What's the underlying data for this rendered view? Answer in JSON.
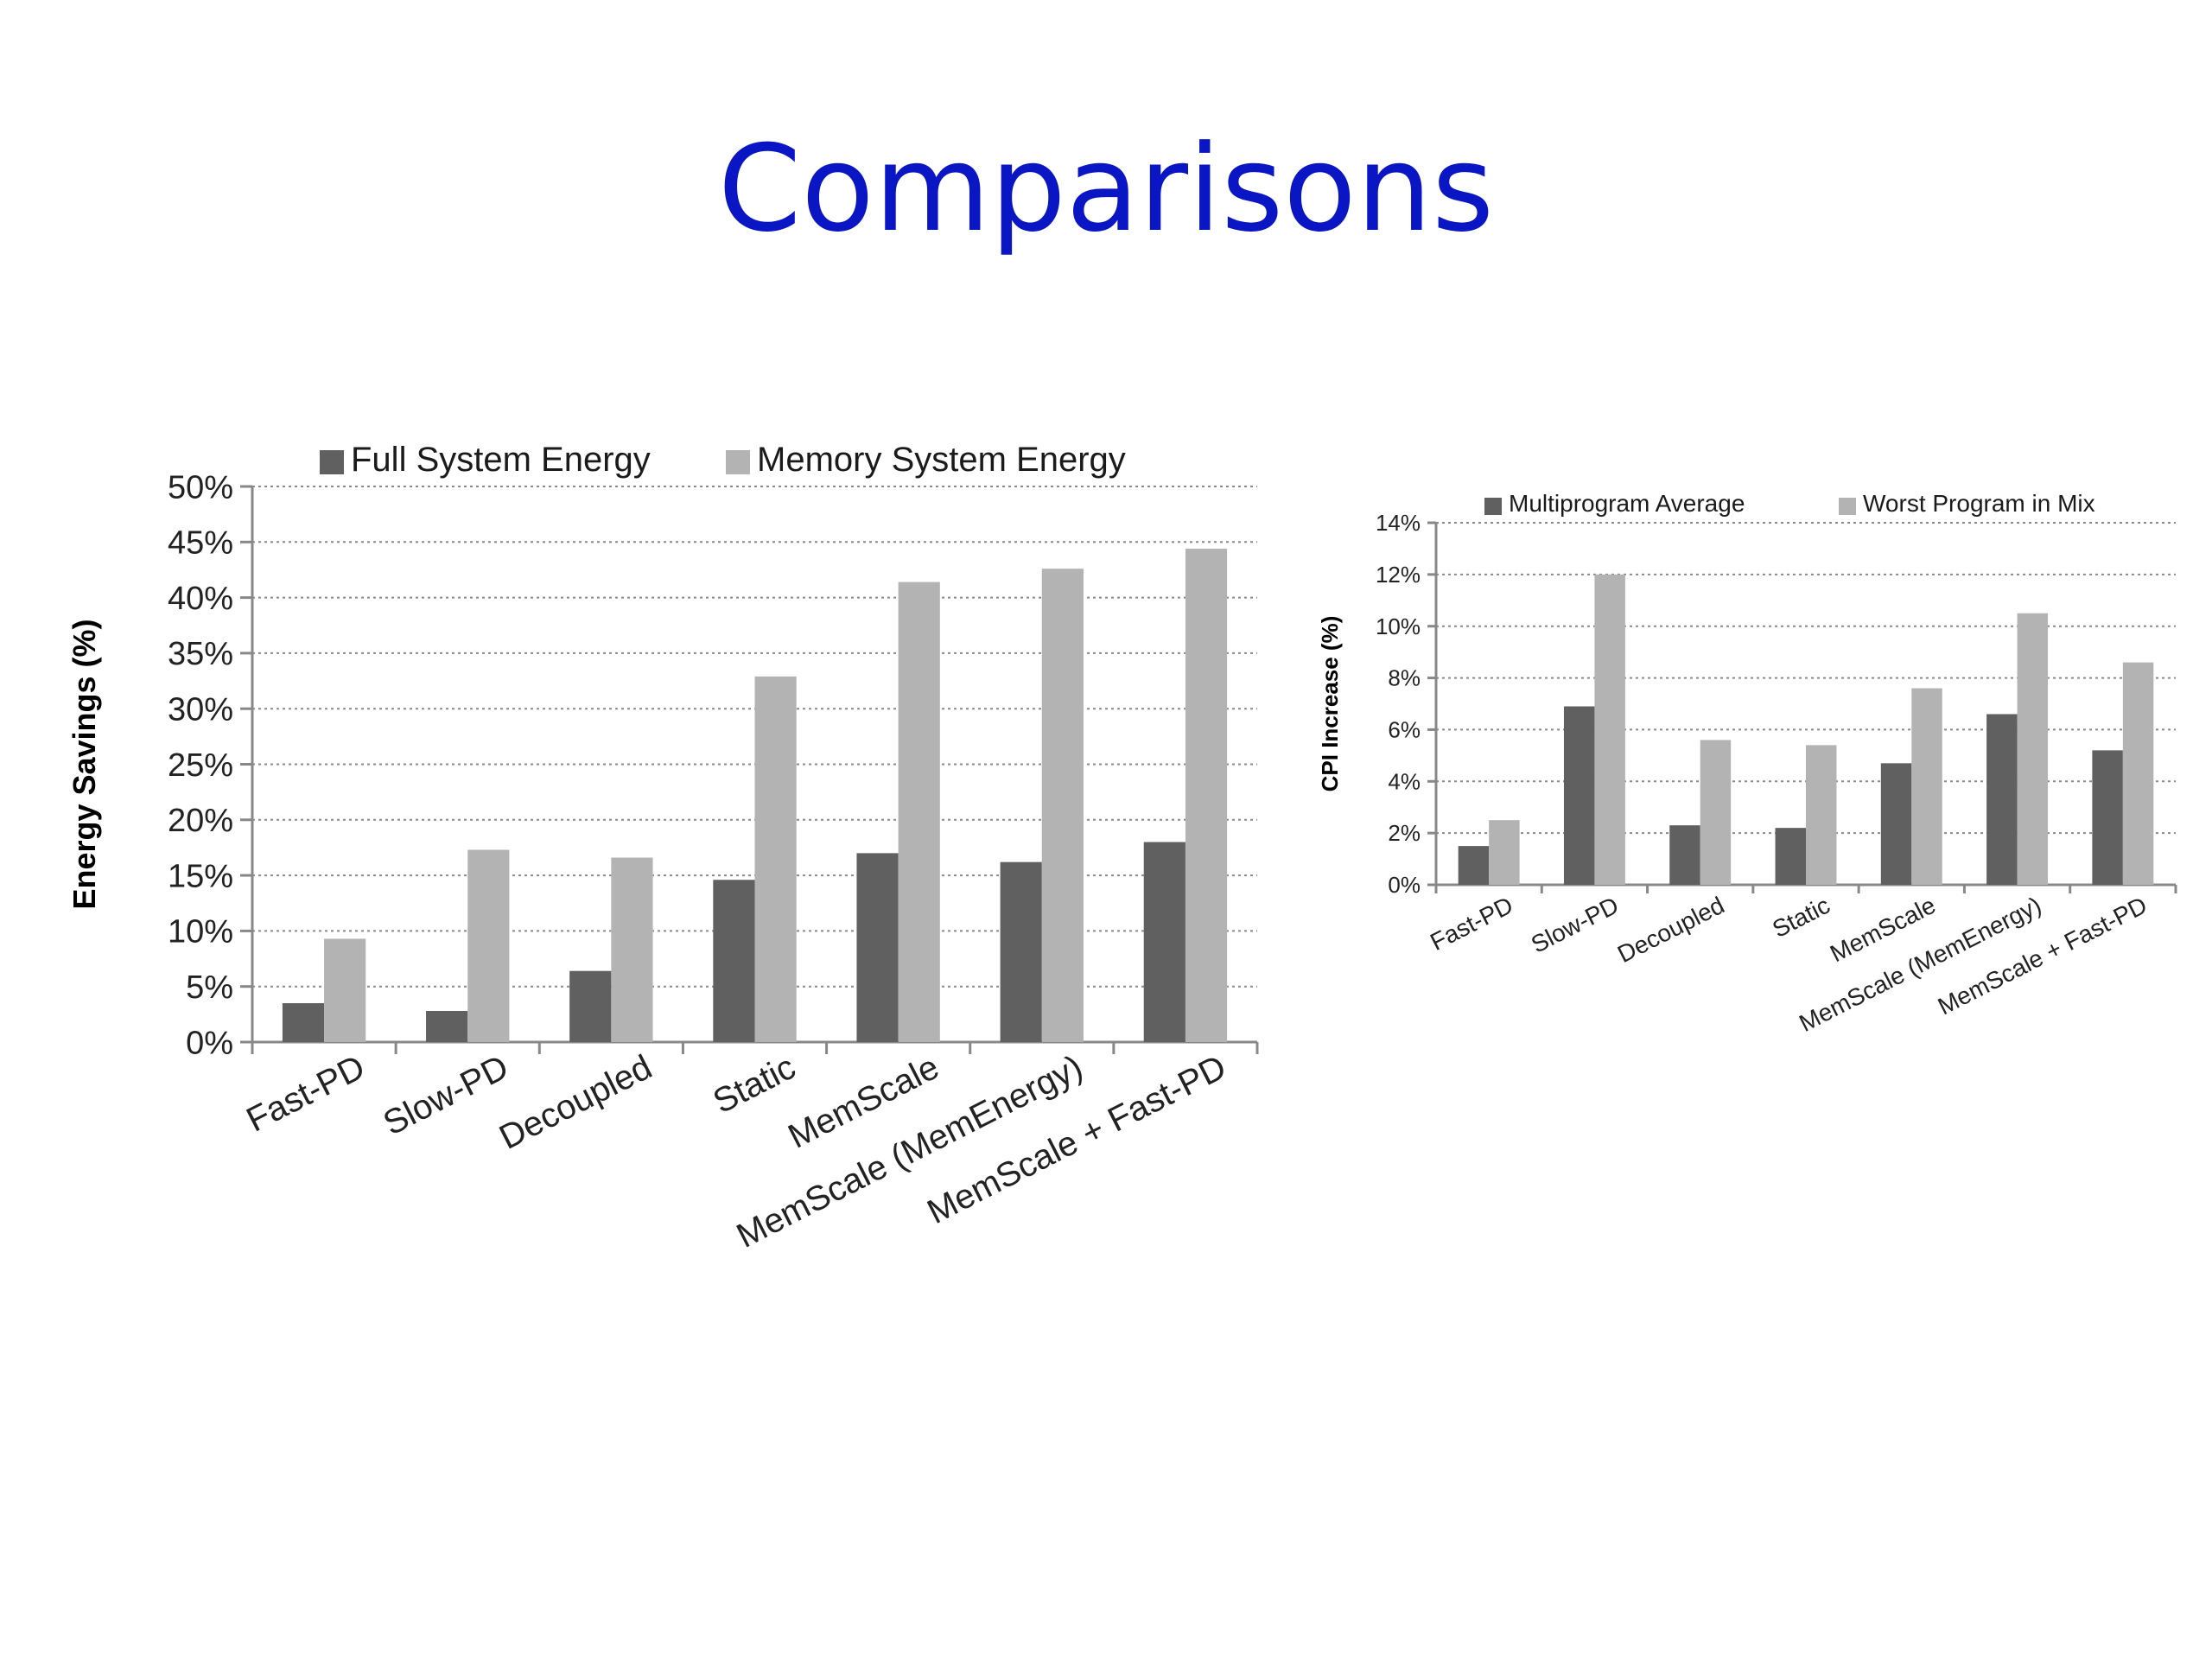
{
  "title": "Comparisons",
  "colors": {
    "title": "#0a16c4",
    "series_dark": "#606060",
    "series_light": "#b3b3b3"
  },
  "chart_data": [
    {
      "type": "bar",
      "categories": [
        "Fast-PD",
        "Slow-PD",
        "Decoupled",
        "Static",
        "MemScale",
        "MemScale (MemEnergy)",
        "MemScale + Fast-PD"
      ],
      "series": [
        {
          "name": "Full System Energy",
          "values": [
            3.5,
            2.8,
            6.4,
            14.6,
            17.0,
            16.2,
            18.0
          ]
        },
        {
          "name": "Memory System Energy",
          "values": [
            9.3,
            17.3,
            16.6,
            32.9,
            41.4,
            42.6,
            44.4
          ]
        }
      ],
      "ylabel": "Energy Savings (%)",
      "yticks": [
        "0%",
        "5%",
        "10%",
        "15%",
        "20%",
        "25%",
        "30%",
        "35%",
        "40%",
        "45%",
        "50%"
      ],
      "ylim": [
        0,
        50
      ],
      "grid": true,
      "legend": "top"
    },
    {
      "type": "bar",
      "categories": [
        "Fast-PD",
        "Slow-PD",
        "Decoupled",
        "Static",
        "MemScale",
        "MemScale (MemEnergy)",
        "MemScale + Fast-PD"
      ],
      "series": [
        {
          "name": "Multiprogram Average",
          "values": [
            1.5,
            6.9,
            2.3,
            2.2,
            4.7,
            6.6,
            5.2
          ]
        },
        {
          "name": "Worst Program in Mix",
          "values": [
            2.5,
            12.0,
            5.6,
            5.4,
            7.6,
            10.5,
            8.6
          ]
        }
      ],
      "ylabel": "CPI Increase (%)",
      "yticks": [
        "0%",
        "2%",
        "4%",
        "6%",
        "8%",
        "10%",
        "12%",
        "14%"
      ],
      "ylim": [
        0,
        14
      ],
      "grid": true,
      "legend": "top"
    }
  ]
}
